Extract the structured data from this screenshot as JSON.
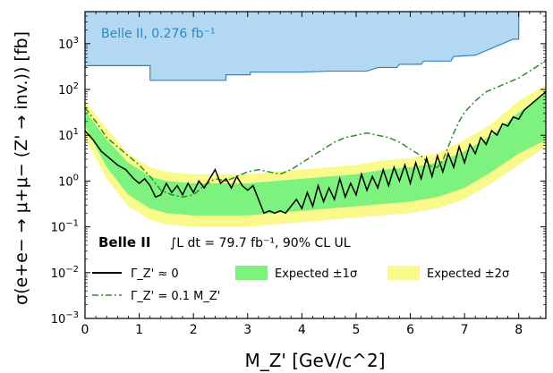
{
  "chart_data": {
    "type": "line",
    "title": "",
    "xlabel": "M_Z' [GeV/c^2]",
    "ylabel": "σ(e+e− → μ+μ− (Z' → inv.)) [fb]",
    "xlim": [
      0,
      8.5
    ],
    "ylim_log10": [
      -3,
      3.7
    ],
    "yscale": "log",
    "x_ticks": [
      "0",
      "1",
      "2",
      "3",
      "4",
      "5",
      "6",
      "7",
      "8"
    ],
    "y_ticks": [
      {
        "label": "10^3",
        "exp": 3
      },
      {
        "label": "10^2",
        "exp": 2
      },
      {
        "label": "10^1",
        "exp": 1
      },
      {
        "label": "10^0",
        "exp": 0
      },
      {
        "label": "10^-1",
        "exp": -1
      },
      {
        "label": "10^-2",
        "exp": -2
      },
      {
        "label": "10^-3",
        "exp": -3
      }
    ],
    "annotations": {
      "prior_result": "Belle II, 0.276 fb⁻¹",
      "belle": "Belle II",
      "lumi": "∫L dt  =  79.7 fb⁻¹,  90% CL UL"
    },
    "legend": {
      "placement": "lower-left",
      "items": [
        {
          "label": "Γ_Z' ≈ 0",
          "style": "solid-black"
        },
        {
          "label": "Expected ±1σ",
          "style": "green-band"
        },
        {
          "label": "Expected ±2σ",
          "style": "yellow-band"
        },
        {
          "label": "Γ_Z' = 0.1 M_Z'",
          "style": "dashdot-green"
        }
      ]
    },
    "colors": {
      "prior_fill": "#b3d9f2",
      "prior_edge": "#2e86c1",
      "prior_text": "#2e86c1",
      "band1": "#7ef27e",
      "band2": "#fafa8c",
      "observed": "#000000",
      "wide": "#2e8b2e"
    },
    "prior_exclusion": {
      "upper_log10": 3.7,
      "lower_edge": [
        [
          0,
          2.5
        ],
        [
          0.05,
          2.52
        ],
        [
          1.2,
          2.52
        ],
        [
          1.2,
          2.2
        ],
        [
          2.6,
          2.2
        ],
        [
          2.6,
          2.32
        ],
        [
          3.05,
          2.32
        ],
        [
          3.05,
          2.38
        ],
        [
          3.5,
          2.38
        ],
        [
          4.0,
          2.38
        ],
        [
          4.5,
          2.4
        ],
        [
          5.2,
          2.4
        ],
        [
          5.4,
          2.48
        ],
        [
          5.75,
          2.48
        ],
        [
          5.8,
          2.55
        ],
        [
          6.2,
          2.55
        ],
        [
          6.25,
          2.62
        ],
        [
          6.75,
          2.62
        ],
        [
          6.8,
          2.72
        ],
        [
          7.2,
          2.75
        ],
        [
          7.6,
          2.95
        ],
        [
          7.8,
          3.05
        ],
        [
          7.9,
          3.1
        ],
        [
          8.0,
          3.1
        ]
      ],
      "x_end": 8.0
    },
    "expected_band_2sigma": [
      [
        0.0,
        0.95,
        1.75
      ],
      [
        0.4,
        0.05,
        1.15
      ],
      [
        0.8,
        -0.55,
        0.6
      ],
      [
        1.2,
        -0.85,
        0.3
      ],
      [
        1.5,
        -0.95,
        0.2
      ],
      [
        2.0,
        -1.0,
        0.15
      ],
      [
        2.5,
        -1.0,
        0.15
      ],
      [
        3.0,
        -1.0,
        0.15
      ],
      [
        3.5,
        -0.95,
        0.2
      ],
      [
        4.0,
        -0.9,
        0.25
      ],
      [
        4.5,
        -0.85,
        0.3
      ],
      [
        5.0,
        -0.8,
        0.35
      ],
      [
        5.5,
        -0.75,
        0.45
      ],
      [
        6.0,
        -0.7,
        0.5
      ],
      [
        6.5,
        -0.6,
        0.6
      ],
      [
        7.0,
        -0.4,
        0.9
      ],
      [
        7.5,
        -0.05,
        1.25
      ],
      [
        8.0,
        0.35,
        1.75
      ],
      [
        8.5,
        0.75,
        2.1
      ]
    ],
    "expected_band_1sigma": [
      [
        0.0,
        1.2,
        1.55
      ],
      [
        0.4,
        0.3,
        0.9
      ],
      [
        0.8,
        -0.3,
        0.4
      ],
      [
        1.2,
        -0.6,
        0.1
      ],
      [
        1.5,
        -0.7,
        0.0
      ],
      [
        2.0,
        -0.75,
        -0.05
      ],
      [
        2.5,
        -0.75,
        -0.05
      ],
      [
        3.0,
        -0.75,
        -0.05
      ],
      [
        3.5,
        -0.7,
        0.0
      ],
      [
        4.0,
        -0.65,
        0.05
      ],
      [
        4.5,
        -0.6,
        0.1
      ],
      [
        5.0,
        -0.55,
        0.15
      ],
      [
        5.5,
        -0.5,
        0.25
      ],
      [
        6.0,
        -0.45,
        0.3
      ],
      [
        6.5,
        -0.35,
        0.4
      ],
      [
        7.0,
        -0.15,
        0.65
      ],
      [
        7.5,
        0.2,
        1.0
      ],
      [
        8.0,
        0.6,
        1.5
      ],
      [
        8.5,
        0.9,
        1.9
      ]
    ],
    "observed_gamma0": [
      [
        0.0,
        1.1
      ],
      [
        0.15,
        0.9
      ],
      [
        0.3,
        0.65
      ],
      [
        0.45,
        0.5
      ],
      [
        0.6,
        0.35
      ],
      [
        0.75,
        0.25
      ],
      [
        0.9,
        0.05
      ],
      [
        1.0,
        -0.05
      ],
      [
        1.1,
        0.05
      ],
      [
        1.2,
        -0.1
      ],
      [
        1.3,
        -0.35
      ],
      [
        1.4,
        -0.3
      ],
      [
        1.5,
        -0.05
      ],
      [
        1.6,
        -0.25
      ],
      [
        1.7,
        -0.1
      ],
      [
        1.8,
        -0.3
      ],
      [
        1.9,
        -0.05
      ],
      [
        2.0,
        -0.25
      ],
      [
        2.1,
        0.0
      ],
      [
        2.2,
        -0.15
      ],
      [
        2.3,
        0.05
      ],
      [
        2.4,
        0.25
      ],
      [
        2.5,
        -0.05
      ],
      [
        2.6,
        0.05
      ],
      [
        2.7,
        -0.15
      ],
      [
        2.8,
        0.1
      ],
      [
        2.9,
        -0.1
      ],
      [
        3.0,
        -0.2
      ],
      [
        3.1,
        -0.1
      ],
      [
        3.2,
        -0.4
      ],
      [
        3.3,
        -0.7
      ],
      [
        3.4,
        -0.65
      ],
      [
        3.5,
        -0.7
      ],
      [
        3.6,
        -0.65
      ],
      [
        3.7,
        -0.7
      ],
      [
        3.8,
        -0.55
      ],
      [
        3.9,
        -0.4
      ],
      [
        4.0,
        -0.6
      ],
      [
        4.1,
        -0.25
      ],
      [
        4.2,
        -0.55
      ],
      [
        4.3,
        -0.1
      ],
      [
        4.4,
        -0.45
      ],
      [
        4.5,
        -0.15
      ],
      [
        4.6,
        -0.4
      ],
      [
        4.7,
        0.05
      ],
      [
        4.8,
        -0.35
      ],
      [
        4.9,
        -0.05
      ],
      [
        5.0,
        -0.3
      ],
      [
        5.1,
        0.15
      ],
      [
        5.2,
        -0.2
      ],
      [
        5.3,
        0.1
      ],
      [
        5.4,
        -0.15
      ],
      [
        5.5,
        0.25
      ],
      [
        5.6,
        -0.1
      ],
      [
        5.7,
        0.3
      ],
      [
        5.8,
        0.0
      ],
      [
        5.9,
        0.35
      ],
      [
        6.0,
        -0.05
      ],
      [
        6.1,
        0.4
      ],
      [
        6.2,
        0.05
      ],
      [
        6.3,
        0.5
      ],
      [
        6.4,
        0.1
      ],
      [
        6.5,
        0.55
      ],
      [
        6.6,
        0.2
      ],
      [
        6.7,
        0.6
      ],
      [
        6.8,
        0.3
      ],
      [
        6.9,
        0.75
      ],
      [
        7.0,
        0.4
      ],
      [
        7.1,
        0.8
      ],
      [
        7.2,
        0.6
      ],
      [
        7.3,
        0.95
      ],
      [
        7.4,
        0.8
      ],
      [
        7.5,
        1.1
      ],
      [
        7.6,
        1.0
      ],
      [
        7.7,
        1.25
      ],
      [
        7.8,
        1.2
      ],
      [
        7.9,
        1.4
      ],
      [
        8.0,
        1.35
      ],
      [
        8.1,
        1.55
      ],
      [
        8.2,
        1.65
      ],
      [
        8.3,
        1.75
      ],
      [
        8.4,
        1.85
      ],
      [
        8.5,
        1.95
      ]
    ],
    "observed_wide": [
      [
        0.0,
        1.6
      ],
      [
        0.2,
        1.3
      ],
      [
        0.4,
        0.95
      ],
      [
        0.6,
        0.75
      ],
      [
        0.8,
        0.55
      ],
      [
        1.0,
        0.35
      ],
      [
        1.2,
        0.1
      ],
      [
        1.4,
        -0.2
      ],
      [
        1.6,
        -0.3
      ],
      [
        1.8,
        -0.35
      ],
      [
        2.0,
        -0.3
      ],
      [
        2.2,
        -0.1
      ],
      [
        2.4,
        0.05
      ],
      [
        2.6,
        0.0
      ],
      [
        2.8,
        0.1
      ],
      [
        3.0,
        0.2
      ],
      [
        3.2,
        0.25
      ],
      [
        3.4,
        0.2
      ],
      [
        3.6,
        0.15
      ],
      [
        3.8,
        0.25
      ],
      [
        4.0,
        0.4
      ],
      [
        4.2,
        0.55
      ],
      [
        4.4,
        0.7
      ],
      [
        4.6,
        0.85
      ],
      [
        4.8,
        0.95
      ],
      [
        5.0,
        1.0
      ],
      [
        5.2,
        1.05
      ],
      [
        5.4,
        1.0
      ],
      [
        5.6,
        0.95
      ],
      [
        5.8,
        0.85
      ],
      [
        6.0,
        0.7
      ],
      [
        6.2,
        0.55
      ],
      [
        6.4,
        0.3
      ],
      [
        6.5,
        0.3
      ],
      [
        6.6,
        0.45
      ],
      [
        6.7,
        0.75
      ],
      [
        6.8,
        1.05
      ],
      [
        6.9,
        1.3
      ],
      [
        7.0,
        1.5
      ],
      [
        7.2,
        1.75
      ],
      [
        7.4,
        1.95
      ],
      [
        7.6,
        2.05
      ],
      [
        7.8,
        2.15
      ],
      [
        8.0,
        2.25
      ],
      [
        8.2,
        2.4
      ],
      [
        8.4,
        2.55
      ],
      [
        8.5,
        2.65
      ]
    ]
  }
}
